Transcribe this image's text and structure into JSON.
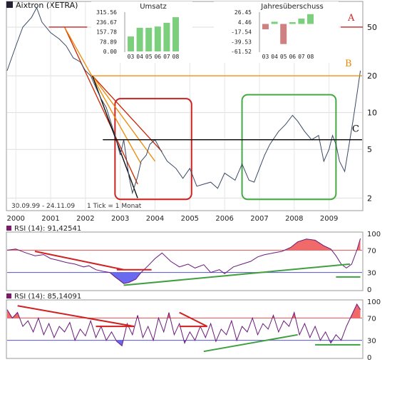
{
  "chart_data": [
    {
      "type": "line",
      "title": "Aixtron (XETRA)",
      "range_text": "30.09.99 - 24.11.09",
      "tick_text": "1 Tick = 1 Monat",
      "scale": "log",
      "x_ticks": [
        "2000",
        "2001",
        "2002",
        "2003",
        "2004",
        "2005",
        "2006",
        "2007",
        "2008",
        "2009"
      ],
      "y_ticks": [
        2,
        5,
        10,
        20,
        50
      ],
      "ylim": [
        1.6,
        80
      ],
      "x": [
        1999.75,
        2000.0,
        2000.2,
        2000.45,
        2000.6,
        2000.75,
        2001.0,
        2001.25,
        2001.45,
        2001.65,
        2001.85,
        2002.0,
        2002.15,
        2002.3,
        2002.45,
        2002.6,
        2002.75,
        2002.85,
        2003.0,
        2003.1,
        2003.25,
        2003.35,
        2003.5,
        2003.6,
        2003.75,
        2003.85,
        2004.0,
        2004.15,
        2004.35,
        2004.6,
        2004.8,
        2005.0,
        2005.2,
        2005.4,
        2005.6,
        2005.8,
        2006.0,
        2006.3,
        2006.5,
        2006.7,
        2006.85,
        2007.0,
        2007.15,
        2007.3,
        2007.55,
        2007.75,
        2007.95,
        2008.1,
        2008.3,
        2008.5,
        2008.7,
        2008.85,
        2009.0,
        2009.1,
        2009.2,
        2009.3,
        2009.45,
        2009.6,
        2009.7,
        2009.8,
        2009.9
      ],
      "values": [
        22,
        35,
        50,
        60,
        72,
        55,
        45,
        40,
        35,
        28,
        26,
        22,
        20,
        16,
        13,
        11,
        8,
        6.5,
        4.5,
        6,
        3,
        2.2,
        3,
        4,
        4.5,
        5.5,
        6,
        5,
        4,
        3.5,
        2.9,
        3.5,
        2.5,
        2.6,
        2.7,
        2.4,
        3.2,
        2.8,
        3.8,
        2.8,
        2.7,
        3.5,
        4.5,
        5.5,
        7,
        8,
        9.5,
        8.5,
        7,
        6,
        6.5,
        4,
        5,
        6.5,
        5.5,
        4,
        3.3,
        6,
        9,
        14,
        22
      ],
      "series": [
        {
          "name": "Aixtron",
          "values_key": "values"
        }
      ],
      "annotations": [
        {
          "label": "A",
          "value": 50
        },
        {
          "label": "B",
          "value": 20
        },
        {
          "label": "C",
          "value": 6
        }
      ],
      "trendlines": [
        {
          "color": "#cc2200",
          "from": [
            2001.4,
            50
          ],
          "to": [
            2003.5,
            2.6
          ]
        },
        {
          "color": "#ee8800",
          "from": [
            2001.4,
            50
          ],
          "to": [
            2003.6,
            3.8
          ]
        },
        {
          "color": "#cc2200",
          "from": [
            2002.2,
            20
          ],
          "to": [
            2004.2,
            4.8
          ]
        },
        {
          "color": "#ee8800",
          "from": [
            2002.2,
            20
          ],
          "to": [
            2004.0,
            4.0
          ]
        },
        {
          "color": "#000000",
          "from": [
            2002.2,
            20
          ],
          "to": [
            2003.5,
            2.0
          ]
        }
      ],
      "boxes": [
        {
          "color": "#cc2222",
          "from": [
            2002.85,
            13
          ],
          "to": [
            2005.05,
            1.95
          ]
        },
        {
          "color": "#44aa44",
          "from": [
            2006.5,
            14
          ],
          "to": [
            2009.2,
            1.95
          ]
        }
      ]
    },
    {
      "type": "bar",
      "title": "Umsatz",
      "categories": [
        "03",
        "04",
        "05",
        "06",
        "07",
        "08"
      ],
      "values": [
        120,
        190,
        190,
        200,
        230,
        275
      ],
      "y_ticks": [
        "315.56",
        "236.67",
        "157.78",
        "78.89",
        "0.00"
      ],
      "ylim": [
        0,
        315.56
      ]
    },
    {
      "type": "bar",
      "title": "Jahresüberschuss",
      "categories": [
        "03",
        "04",
        "05",
        "06",
        "07",
        "08"
      ],
      "values": [
        -12,
        5,
        -45,
        4,
        12,
        22
      ],
      "y_ticks": [
        "26.45",
        "4.46",
        "-17.54",
        "-39.53",
        "-61.52"
      ],
      "ylim": [
        -61.52,
        26.45
      ]
    },
    {
      "type": "line",
      "title": "RSI (14): 91,42541",
      "y_ticks": [
        0,
        30,
        70,
        100
      ],
      "ylim": [
        0,
        100
      ],
      "levels": [
        30,
        70
      ],
      "x": [
        1999.75,
        2000.0,
        2000.3,
        2000.55,
        2000.8,
        2001.0,
        2001.2,
        2001.45,
        2001.7,
        2001.95,
        2002.1,
        2002.3,
        2002.5,
        2002.7,
        2002.85,
        2003.0,
        2003.1,
        2003.25,
        2003.45,
        2003.6,
        2003.8,
        2004.0,
        2004.2,
        2004.45,
        2004.7,
        2004.95,
        2005.15,
        2005.4,
        2005.6,
        2005.85,
        2006.0,
        2006.25,
        2006.5,
        2006.75,
        2006.95,
        2007.15,
        2007.4,
        2007.65,
        2007.9,
        2008.1,
        2008.35,
        2008.6,
        2008.85,
        2009.05,
        2009.2,
        2009.35,
        2009.5,
        2009.65,
        2009.8,
        2009.9
      ],
      "values": [
        70,
        72,
        65,
        60,
        62,
        55,
        52,
        48,
        45,
        40,
        42,
        35,
        32,
        30,
        22,
        15,
        10,
        12,
        18,
        30,
        42,
        55,
        65,
        50,
        40,
        45,
        38,
        44,
        30,
        35,
        28,
        40,
        45,
        50,
        58,
        62,
        65,
        68,
        75,
        85,
        90,
        88,
        78,
        72,
        60,
        45,
        38,
        45,
        70,
        91
      ]
    },
    {
      "type": "line",
      "title": "RSI (14): 85,14091",
      "y_ticks": [
        0,
        30,
        70,
        100
      ],
      "ylim": [
        0,
        100
      ],
      "levels": [
        30,
        70
      ],
      "x": [
        1999.75,
        1999.9,
        2000.05,
        2000.2,
        2000.35,
        2000.5,
        2000.65,
        2000.8,
        2000.95,
        2001.1,
        2001.25,
        2001.4,
        2001.55,
        2001.7,
        2001.85,
        2002.0,
        2002.15,
        2002.3,
        2002.45,
        2002.6,
        2002.75,
        2002.9,
        2003.05,
        2003.2,
        2003.35,
        2003.5,
        2003.65,
        2003.8,
        2003.95,
        2004.1,
        2004.25,
        2004.4,
        2004.55,
        2004.7,
        2004.85,
        2005.0,
        2005.15,
        2005.3,
        2005.45,
        2005.6,
        2005.75,
        2005.9,
        2006.05,
        2006.2,
        2006.35,
        2006.5,
        2006.65,
        2006.8,
        2006.95,
        2007.1,
        2007.25,
        2007.4,
        2007.55,
        2007.7,
        2007.85,
        2008.0,
        2008.15,
        2008.3,
        2008.45,
        2008.6,
        2008.75,
        2008.9,
        2009.05,
        2009.2,
        2009.35,
        2009.5,
        2009.65,
        2009.8,
        2009.9
      ],
      "values": [
        85,
        70,
        80,
        55,
        65,
        45,
        70,
        40,
        60,
        35,
        55,
        45,
        62,
        30,
        50,
        38,
        65,
        35,
        55,
        30,
        45,
        28,
        20,
        60,
        40,
        75,
        35,
        55,
        30,
        70,
        45,
        80,
        40,
        60,
        25,
        45,
        30,
        55,
        35,
        60,
        28,
        50,
        40,
        65,
        30,
        55,
        45,
        70,
        40,
        60,
        50,
        75,
        45,
        65,
        55,
        80,
        40,
        60,
        35,
        55,
        30,
        45,
        25,
        40,
        30,
        55,
        75,
        95,
        85
      ]
    }
  ]
}
